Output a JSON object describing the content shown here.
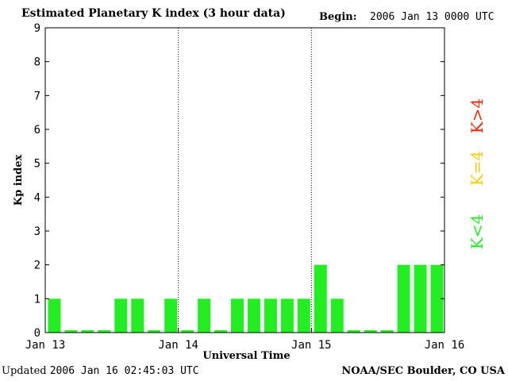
{
  "header": {
    "title": "Estimated Planetary K index (3 hour data)",
    "begin_label": "Begin:",
    "begin_value": "2006 Jan 13 0000 UTC"
  },
  "footer": {
    "updated_label": "Updated",
    "updated_value": "2006 Jan 16 02:45:03 UTC",
    "source": "NOAA/SEC Boulder, CO USA"
  },
  "colors": {
    "low": "#22ee22",
    "storm_threshold": "#ffcc00",
    "high": "#ff2200",
    "axis": "#000000",
    "background": "#ffffff"
  },
  "chart_data": {
    "type": "bar",
    "title": "Estimated Planetary K index (3 hour data)",
    "xlabel": "Universal Time",
    "ylabel": "Kp index",
    "ylim": [
      0,
      9
    ],
    "yticks": [
      0,
      1,
      2,
      3,
      4,
      5,
      6,
      7,
      8,
      9
    ],
    "xticks": [
      "Jan 13",
      "Jan 14",
      "Jan 15",
      "Jan 16"
    ],
    "x_range_days": [
      0,
      3
    ],
    "interval_hours": 3,
    "values": [
      1,
      0,
      0,
      0,
      1,
      1,
      0,
      1,
      0,
      1,
      0,
      1,
      1,
      1,
      1,
      1,
      2,
      1,
      0,
      0,
      0,
      2,
      2,
      2
    ],
    "day_separators": "dotted",
    "grid": false,
    "legend": [
      {
        "label": "K<4",
        "color": "#22ee22"
      },
      {
        "label": "K=4",
        "color": "#ffcc00"
      },
      {
        "label": "K>4",
        "color": "#ff2200"
      }
    ],
    "legend_placement": "right"
  }
}
